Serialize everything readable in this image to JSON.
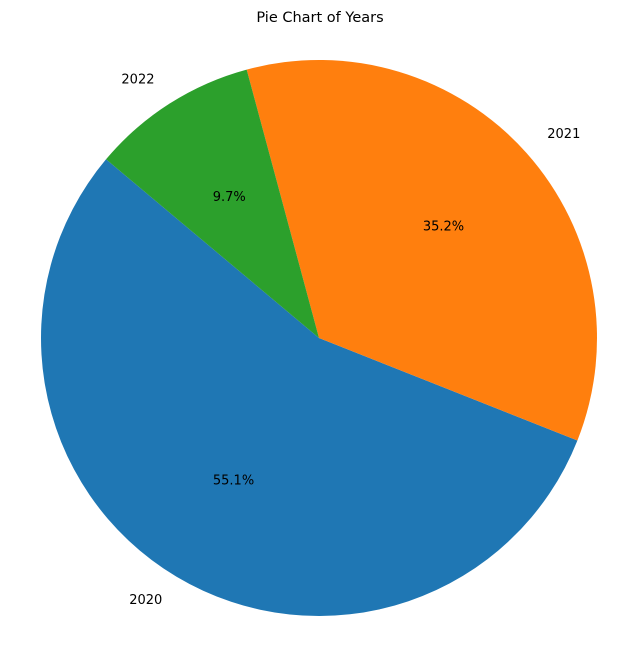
{
  "chart_data": {
    "type": "pie",
    "title": "Pie Chart of Years",
    "categories": [
      "2020",
      "2021",
      "2022"
    ],
    "values": [
      55.1,
      35.2,
      9.7
    ],
    "value_labels": [
      "55.1%",
      "35.2%",
      "9.7%"
    ],
    "colors": [
      "#1f77b4",
      "#ff7f0e",
      "#2ca02c"
    ],
    "start_angle_deg": 140,
    "direction": "counterclockwise",
    "legend": "none"
  }
}
